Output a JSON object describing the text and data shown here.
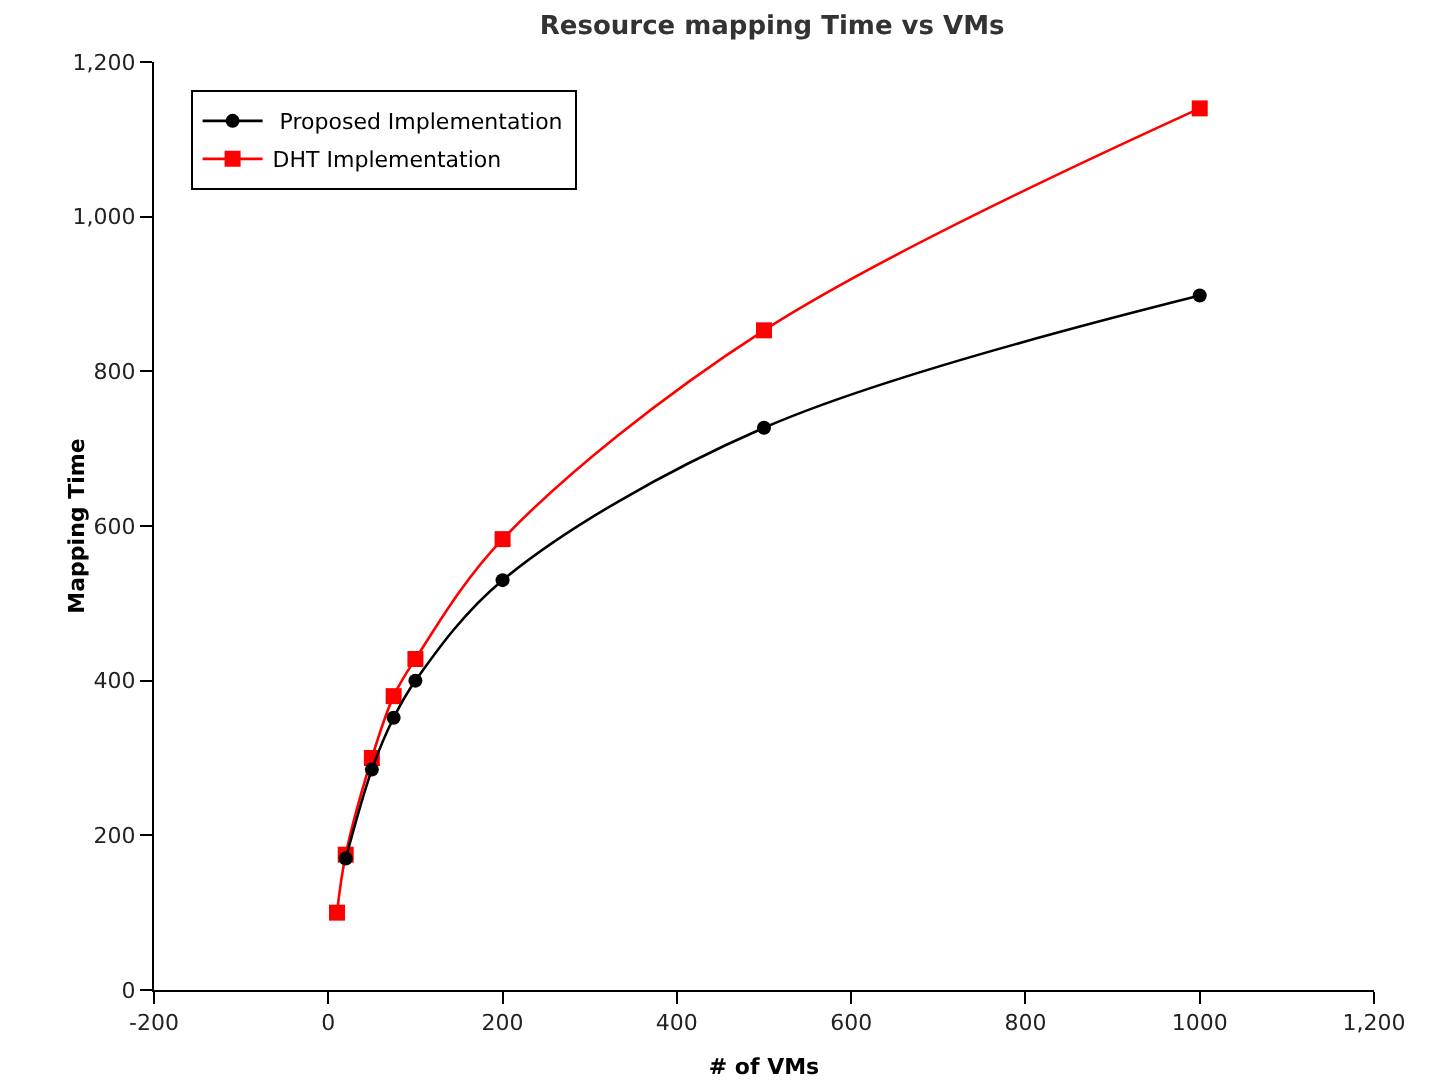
{
  "chart_data": {
    "type": "line",
    "title": "Resource mapping Time vs VMs",
    "xlabel": "# of VMs",
    "ylabel": "Mapping Time",
    "series": [
      {
        "name": " Proposed Implementation",
        "color": "#000000",
        "marker": "circle",
        "x": [
          20,
          50,
          75,
          100,
          200,
          500,
          1000
        ],
        "values": [
          170,
          285,
          352,
          400,
          530,
          727,
          898
        ]
      },
      {
        "name": "DHT Implementation",
        "color": "#ff0000",
        "marker": "square",
        "x": [
          10,
          20,
          50,
          75,
          100,
          200,
          500,
          1000
        ],
        "values": [
          100,
          175,
          300,
          380,
          428,
          583,
          853,
          1140
        ]
      }
    ],
    "xlim": [
      -200,
      1200
    ],
    "xticks": [
      -200,
      0,
      200,
      400,
      600,
      800,
      1000,
      {
        "value": 1200,
        "label": "1,200"
      }
    ],
    "ylim": [
      0,
      1200
    ],
    "yticks": [
      0,
      200,
      400,
      600,
      800,
      {
        "value": 1000,
        "label": "1,000"
      },
      {
        "value": 1200,
        "label": "1,200"
      }
    ],
    "grid": false,
    "legend": "top left",
    "line_style": "solid"
  }
}
